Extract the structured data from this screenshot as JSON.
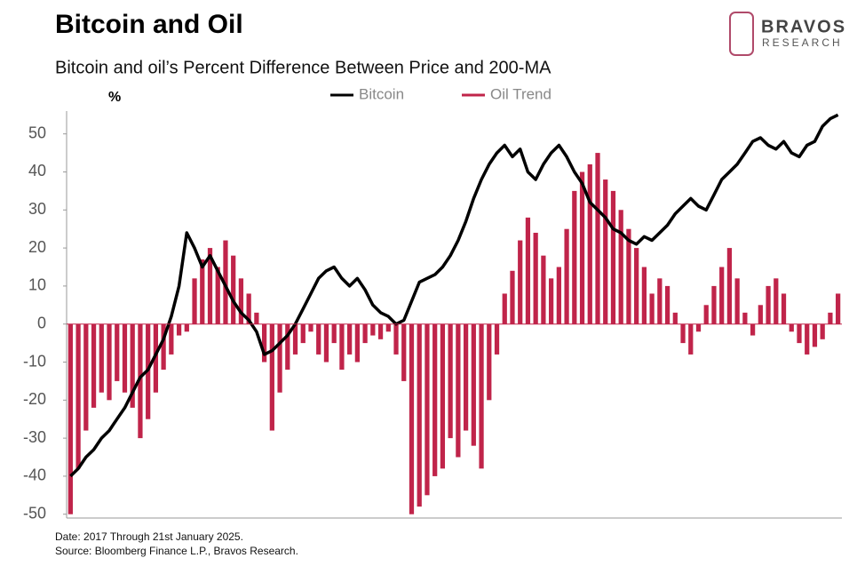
{
  "chart_data": {
    "type": "combo",
    "title": "Bitcoin and Oil",
    "subtitle": "Bitcoin and oil’s Percent Difference Between Price and 200-MA",
    "y_label": "%",
    "brand": "BRAVOS",
    "brand_sub": "RESEARCH",
    "notes": [
      "Date: 2017 Through 21st January 2025.",
      "Source: Bloomberg Finance L.P., Bravos Research."
    ],
    "ylim": [
      -51,
      56
    ],
    "yticks": [
      -50,
      -40,
      -30,
      -20,
      -10,
      0,
      10,
      20,
      30,
      40,
      50
    ],
    "series": [
      {
        "name": "Bitcoin",
        "type": "line",
        "color": "#000000",
        "values": [
          -40,
          -38,
          -35,
          -33,
          -30,
          -28,
          -25,
          -22,
          -18,
          -14,
          -12,
          -8,
          -4,
          2,
          10,
          24,
          20,
          15,
          18,
          14,
          10,
          6,
          3,
          1,
          -2,
          -8,
          -7,
          -5,
          -3,
          0,
          4,
          8,
          12,
          14,
          15,
          12,
          10,
          12,
          9,
          5,
          3,
          2,
          0,
          1,
          6,
          11,
          12,
          13,
          15,
          18,
          22,
          27,
          33,
          38,
          42,
          45,
          47,
          44,
          46,
          40,
          38,
          42,
          45,
          47,
          44,
          40,
          37,
          32,
          30,
          28,
          25,
          24,
          22,
          21,
          23,
          22,
          24,
          26,
          29,
          31,
          33,
          31,
          30,
          34,
          38,
          40,
          42,
          45,
          48,
          49,
          47,
          46,
          48,
          45,
          44,
          47,
          48,
          52,
          54,
          55
        ]
      },
      {
        "name": "Oil Trend",
        "type": "bar",
        "color": "#c0244a",
        "values": [
          -50,
          -38,
          -28,
          -22,
          -18,
          -20,
          -15,
          -18,
          -22,
          -30,
          -25,
          -18,
          -12,
          -8,
          -3,
          -2,
          12,
          17,
          20,
          15,
          22,
          18,
          12,
          8,
          3,
          -10,
          -28,
          -18,
          -12,
          -8,
          -5,
          -2,
          -8,
          -10,
          -5,
          -12,
          -8,
          -10,
          -5,
          -3,
          -4,
          -2,
          -8,
          -15,
          -50,
          -48,
          -45,
          -40,
          -38,
          -30,
          -35,
          -28,
          -32,
          -38,
          -20,
          -8,
          8,
          14,
          22,
          28,
          24,
          18,
          12,
          15,
          25,
          35,
          40,
          42,
          45,
          38,
          35,
          30,
          25,
          20,
          15,
          8,
          12,
          10,
          3,
          -5,
          -8,
          -2,
          5,
          10,
          15,
          20,
          12,
          3,
          -3,
          5,
          10,
          12,
          8,
          -2,
          -5,
          -8,
          -6,
          -4,
          3,
          8
        ]
      }
    ]
  }
}
